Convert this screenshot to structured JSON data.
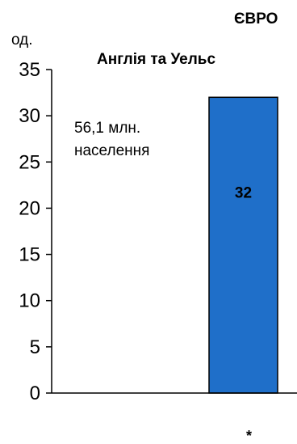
{
  "header": {
    "title_fragment": "ЄВРО"
  },
  "chart_data": {
    "type": "bar",
    "title": "Англія та Уельс",
    "ylabel": "од.",
    "ylim": [
      0,
      35
    ],
    "yticks": [
      0,
      5,
      10,
      15,
      20,
      25,
      30,
      35
    ],
    "categories": [
      "*"
    ],
    "values": [
      32
    ],
    "data_labels": [
      "32"
    ],
    "annotation": [
      "56,1 млн.",
      "населення"
    ],
    "bar_color": "#1f6fc9",
    "grid": false
  }
}
